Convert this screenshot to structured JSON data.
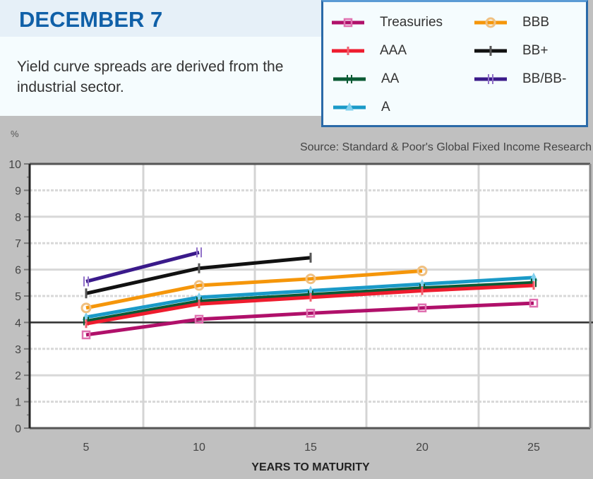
{
  "header": {
    "title": "DECEMBER 7",
    "description": "Yield curve spreads are derived from the industrial sector."
  },
  "source": "Source: Standard & Poor's Global Fixed Income Research",
  "colors": {
    "title": "#1060a8",
    "legend_border": "#2a6aa8",
    "background": "#c0c0c0",
    "plot_bg": "#ffffff"
  },
  "legend": [
    {
      "name": "Treasuries",
      "color": "#b0106a",
      "marker": "square"
    },
    {
      "name": "AAA",
      "color": "#ee1c2e",
      "marker": "plus"
    },
    {
      "name": "AA",
      "color": "#0a5a34",
      "marker": "double-plus"
    },
    {
      "name": "A",
      "color": "#1a9ac8",
      "marker": "triangle"
    },
    {
      "name": "BBB",
      "color": "#f5960a",
      "marker": "circle"
    },
    {
      "name": "BB+",
      "color": "#111111",
      "marker": "bar"
    },
    {
      "name": "BB/BB-",
      "color": "#3a1a8a",
      "marker": "double-bar"
    }
  ],
  "chart_data": {
    "type": "line",
    "title": "DECEMBER 7",
    "subtitle": "Yield curve spreads are derived from the industrial sector.",
    "xlabel": "YEARS TO MATURITY",
    "ylabel": "%",
    "x": [
      5,
      10,
      15,
      20,
      25
    ],
    "xticks": [
      "5",
      "10",
      "15",
      "20",
      "25"
    ],
    "yticks": [
      "0",
      "1",
      "2",
      "3",
      "4",
      "5",
      "6",
      "7",
      "8",
      "9",
      "10"
    ],
    "ylim": [
      0,
      10
    ],
    "grid": true,
    "reference_line": 4,
    "legend_position": "top-right",
    "annotation": "Source: Standard & Poor's Global Fixed Income Research",
    "series": [
      {
        "name": "Treasuries",
        "values": [
          3.53,
          4.12,
          4.35,
          4.55,
          4.73
        ]
      },
      {
        "name": "AAA",
        "values": [
          3.95,
          4.7,
          4.95,
          5.2,
          5.4
        ]
      },
      {
        "name": "AA",
        "values": [
          4.05,
          4.8,
          5.05,
          5.3,
          5.5
        ]
      },
      {
        "name": "A",
        "values": [
          4.2,
          4.95,
          5.2,
          5.45,
          5.7
        ]
      },
      {
        "name": "BBB",
        "values": [
          4.55,
          5.4,
          5.65,
          5.95,
          null
        ]
      },
      {
        "name": "BB+",
        "values": [
          5.1,
          6.05,
          6.45,
          null,
          null
        ]
      },
      {
        "name": "BB/BB-",
        "values": [
          5.55,
          6.65,
          null,
          null,
          null
        ]
      }
    ]
  }
}
